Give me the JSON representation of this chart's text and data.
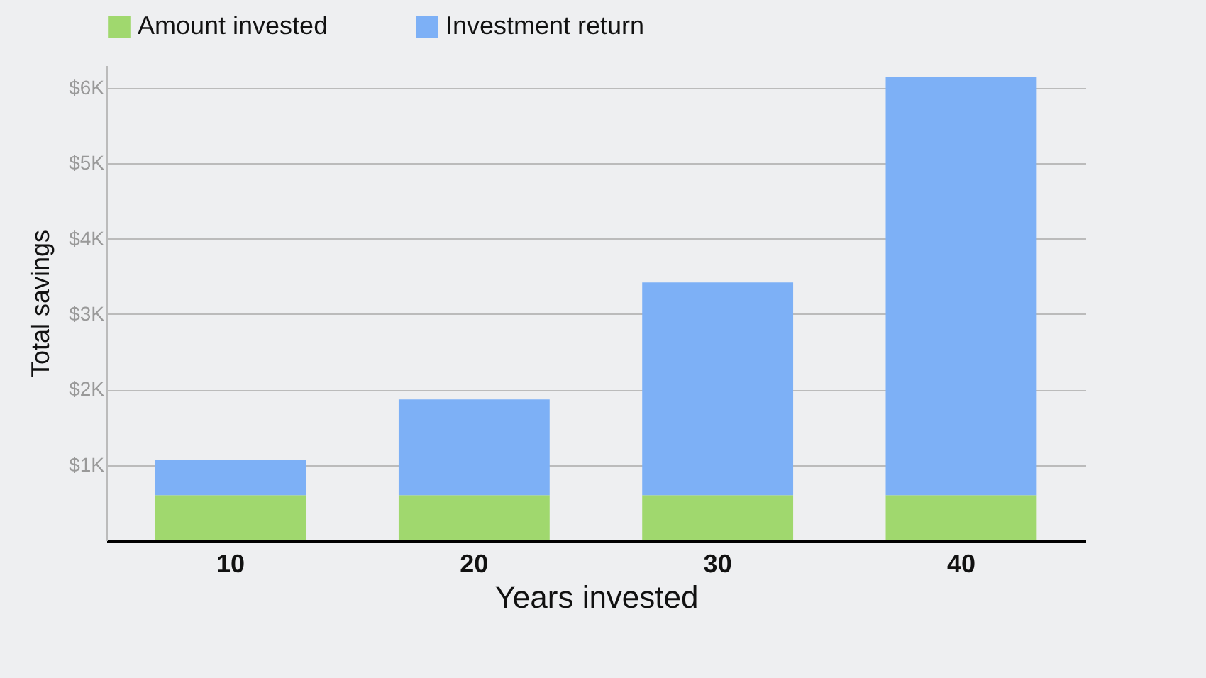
{
  "chart_data": {
    "type": "bar",
    "stacked": true,
    "xlabel": "Years invested",
    "ylabel": "Total savings",
    "categories": [
      "10",
      "20",
      "30",
      "40"
    ],
    "series": [
      {
        "name": "Amount invested",
        "color": "#a0d86e",
        "values": [
          600,
          600,
          600,
          600
        ]
      },
      {
        "name": "Investment return",
        "color": "#7db0f6",
        "values": [
          470,
          1270,
          2820,
          5540
        ]
      }
    ],
    "ylim": [
      0,
      6300
    ],
    "yticks": [
      {
        "value": 1000,
        "label": "$1K"
      },
      {
        "value": 2000,
        "label": "$2K"
      },
      {
        "value": 3000,
        "label": "$3K"
      },
      {
        "value": 4000,
        "label": "$4K"
      },
      {
        "value": 5000,
        "label": "$5K"
      },
      {
        "value": 6000,
        "label": "$6K"
      }
    ],
    "grid": "y",
    "legend": "top"
  }
}
